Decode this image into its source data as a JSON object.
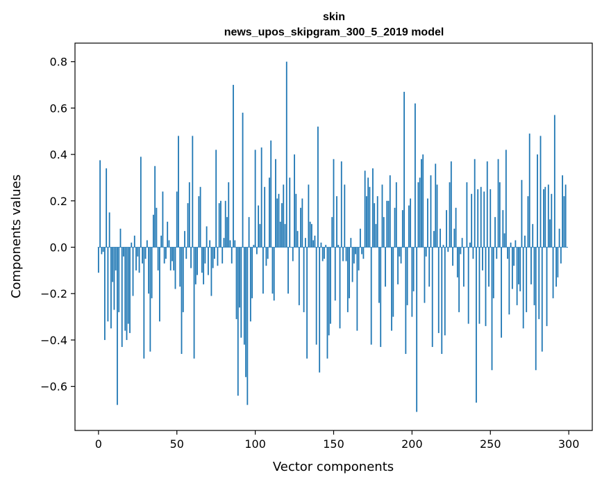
{
  "chart_data": {
    "type": "bar",
    "title": "skin",
    "subtitle": "news_upos_skipgram_300_5_2019 model",
    "xlabel": "Vector components",
    "ylabel": "Components values",
    "xlim": [
      -15,
      315
    ],
    "ylim": [
      -0.79,
      0.88
    ],
    "xticks": [
      0,
      50,
      100,
      150,
      200,
      250,
      300
    ],
    "yticks": [
      -0.6,
      -0.4,
      -0.2,
      0.0,
      0.2,
      0.4,
      0.6,
      0.8
    ],
    "xtick_labels": [
      "0",
      "50",
      "100",
      "150",
      "200",
      "250",
      "300"
    ],
    "ytick_labels": [
      "−0.6",
      "−0.4",
      "−0.2",
      "0.0",
      "0.2",
      "0.4",
      "0.6",
      "0.8"
    ],
    "bar_color": "#1f77b4",
    "values": [
      -0.11,
      0.375,
      -0.03,
      -0.02,
      -0.4,
      0.34,
      -0.32,
      0.15,
      -0.35,
      -0.15,
      -0.27,
      -0.1,
      -0.68,
      -0.28,
      0.08,
      -0.43,
      -0.04,
      -0.36,
      -0.4,
      -0.33,
      -0.37,
      0.02,
      -0.21,
      0.05,
      -0.1,
      -0.04,
      -0.11,
      0.39,
      -0.07,
      -0.48,
      -0.05,
      0.03,
      -0.2,
      -0.45,
      -0.22,
      0.14,
      0.35,
      0.17,
      -0.1,
      -0.32,
      0.05,
      0.24,
      -0.07,
      -0.05,
      0.11,
      0.03,
      -0.1,
      -0.06,
      -0.1,
      -0.18,
      0.24,
      0.48,
      -0.17,
      -0.46,
      -0.28,
      0.07,
      -0.05,
      0.19,
      0.28,
      -0.09,
      0.48,
      -0.48,
      -0.16,
      -0.12,
      0.22,
      0.26,
      -0.11,
      -0.16,
      -0.07,
      0.09,
      -0.12,
      0.03,
      -0.21,
      -0.09,
      -0.05,
      0.42,
      -0.08,
      0.19,
      0.2,
      -0.07,
      0.04,
      0.2,
      0.13,
      0.28,
      0.03,
      -0.07,
      0.7,
      0.03,
      -0.31,
      -0.64,
      -0.26,
      -0.39,
      0.58,
      -0.42,
      -0.56,
      -0.68,
      0.13,
      -0.32,
      -0.22,
      0.01,
      0.42,
      -0.03,
      0.18,
      0.1,
      0.43,
      -0.2,
      0.26,
      -0.08,
      -0.05,
      0.3,
      0.46,
      -0.2,
      -0.23,
      0.38,
      0.21,
      0.23,
      0.11,
      0.19,
      0.27,
      0.1,
      0.8,
      -0.2,
      0.3,
      0.0,
      -0.06,
      0.4,
      0.23,
      0.07,
      -0.25,
      0.17,
      0.21,
      -0.28,
      0.04,
      -0.48,
      0.27,
      0.11,
      0.1,
      0.03,
      0.05,
      -0.42,
      0.52,
      -0.54,
      0.02,
      -0.06,
      -0.05,
      0.01,
      -0.48,
      -0.38,
      -0.33,
      0.13,
      0.38,
      -0.23,
      0.22,
      0.01,
      -0.35,
      0.37,
      -0.06,
      0.27,
      -0.06,
      -0.28,
      -0.22,
      0.04,
      -0.15,
      -0.07,
      -0.03,
      -0.36,
      -0.1,
      0.08,
      -0.03,
      -0.05,
      0.33,
      0.22,
      0.3,
      0.26,
      -0.42,
      0.34,
      0.19,
      0.1,
      0.22,
      -0.24,
      -0.43,
      0.27,
      0.13,
      -0.17,
      0.2,
      0.2,
      0.31,
      -0.36,
      -0.3,
      0.17,
      0.28,
      -0.16,
      -0.04,
      -0.07,
      0.16,
      0.67,
      -0.46,
      -0.25,
      0.18,
      0.21,
      -0.3,
      -0.19,
      0.62,
      -0.71,
      0.28,
      0.3,
      0.38,
      0.4,
      -0.24,
      -0.04,
      0.21,
      -0.17,
      0.31,
      -0.43,
      0.07,
      0.36,
      0.27,
      -0.37,
      0.08,
      -0.46,
      0.01,
      -0.38,
      0.16,
      -0.02,
      0.28,
      0.37,
      -0.08,
      0.08,
      0.17,
      -0.13,
      -0.28,
      -0.03,
      0.04,
      -0.17,
      0.0,
      0.28,
      -0.33,
      0.02,
      0.23,
      -0.05,
      0.38,
      -0.67,
      0.25,
      -0.33,
      0.26,
      -0.1,
      0.24,
      -0.34,
      0.37,
      -0.17,
      0.25,
      -0.53,
      -0.22,
      0.13,
      -0.05,
      0.38,
      0.28,
      -0.39,
      0.16,
      0.06,
      0.42,
      -0.05,
      -0.29,
      0.02,
      -0.18,
      -0.08,
      0.03,
      -0.25,
      -0.16,
      -0.19,
      0.29,
      -0.35,
      0.05,
      -0.28,
      0.22,
      0.49,
      -0.16,
      0.1,
      -0.25,
      -0.53,
      0.4,
      -0.31,
      0.48,
      -0.45,
      0.25,
      0.26,
      -0.34,
      0.27,
      0.12,
      0.23,
      -0.22,
      0.57,
      -0.17,
      -0.13,
      0.08,
      -0.07,
      0.31,
      0.22,
      0.27,
      0.0
    ]
  }
}
